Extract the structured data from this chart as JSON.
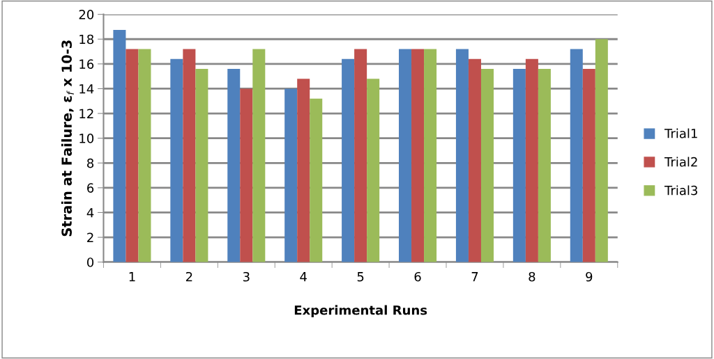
{
  "chart_data": {
    "type": "bar",
    "xlabel": "Experimental Runs",
    "ylabel": "Strain at Failure, ε$_{f}$ x 10-3",
    "categories": [
      "1",
      "2",
      "3",
      "4",
      "5",
      "6",
      "7",
      "8",
      "9"
    ],
    "series": [
      {
        "name": "Trial1",
        "color": "#4f81bd",
        "values": [
          18.75,
          16.4,
          15.6,
          14.0,
          16.4,
          17.2,
          17.2,
          15.6,
          17.2
        ]
      },
      {
        "name": "Trial2",
        "color": "#c0504d",
        "values": [
          17.2,
          17.2,
          14.0,
          14.8,
          17.2,
          17.2,
          16.4,
          16.4,
          15.6
        ]
      },
      {
        "name": "Trial3",
        "color": "#9bbb59",
        "values": [
          17.2,
          15.6,
          17.2,
          13.2,
          14.8,
          17.2,
          15.6,
          15.6,
          18.0
        ]
      }
    ],
    "ylim": [
      0,
      20
    ],
    "yticks": [
      0,
      2,
      4,
      6,
      8,
      10,
      12,
      14,
      16,
      18,
      20
    ],
    "grid": "y",
    "legend": "right"
  }
}
